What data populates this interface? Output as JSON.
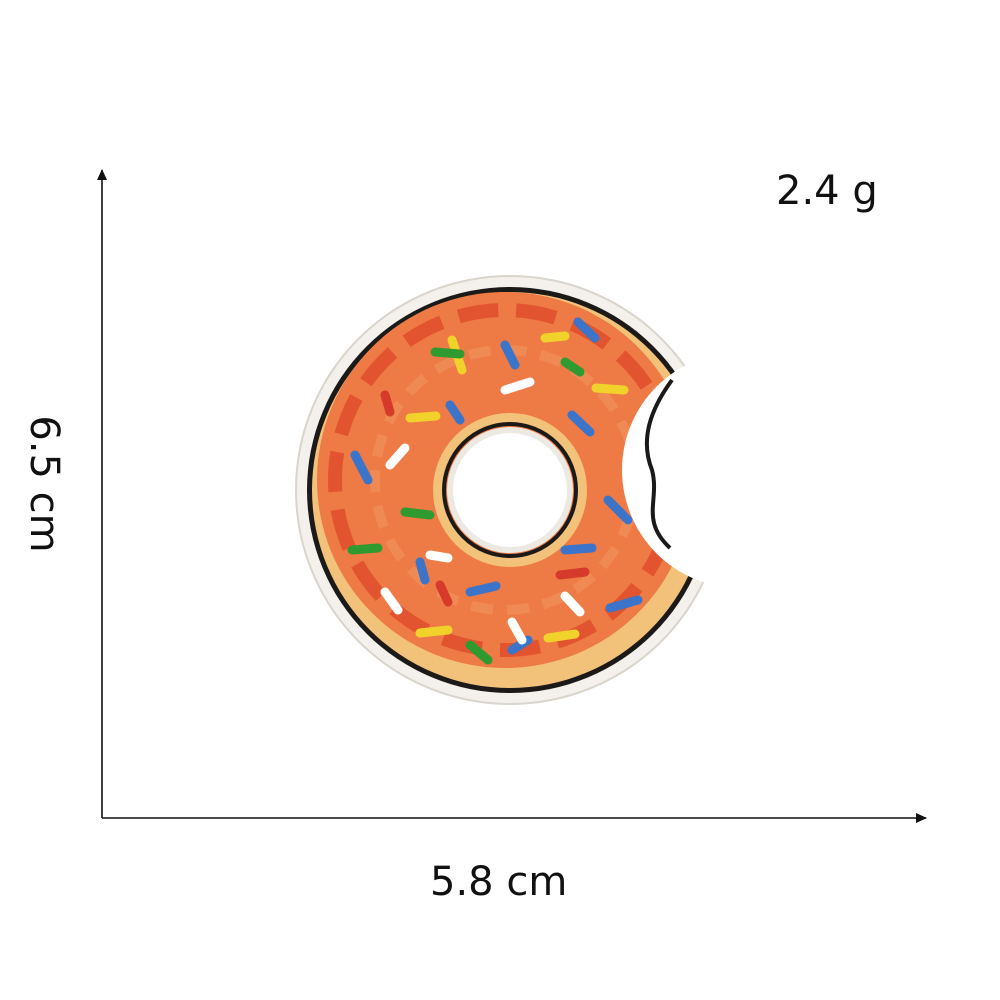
{
  "dimensions": {
    "height_label": "6.5 cm",
    "width_label": "5.8 cm",
    "weight_label": "2.4 g"
  },
  "patch": {
    "icon": "bitten-donut-patch-icon",
    "colors": {
      "backing": "#f4f1ec",
      "outline": "#1c1a18",
      "dough": "#f2c27a",
      "frosting": "#ee7a45",
      "frosting_dark": "#e2542f",
      "sprinkle_colors": [
        "#3b74c9",
        "#f1d22a",
        "#2f9a2f",
        "#ffffff",
        "#d63a2a"
      ]
    }
  }
}
